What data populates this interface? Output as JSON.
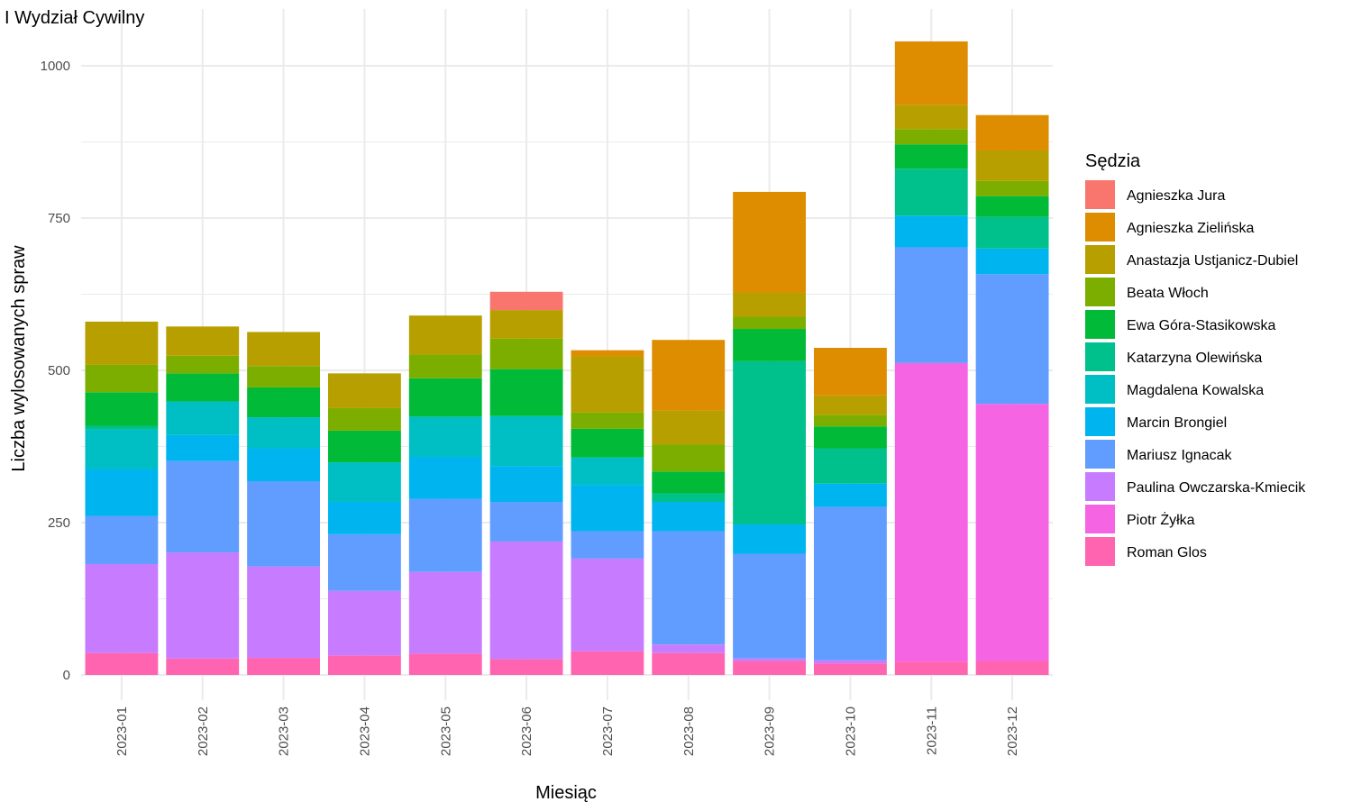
{
  "chart_data": {
    "type": "bar",
    "stacked": true,
    "title": "I Wydział Cywilny",
    "xlabel": "Miesiąc",
    "ylabel": "Liczba wylosowanych spraw",
    "legend_title": "Sędzia",
    "legend_position": "right",
    "grid": true,
    "ylim": [
      -40,
      1065
    ],
    "yticks": [
      0,
      250,
      500,
      750,
      1000
    ],
    "categories": [
      "2023-01",
      "2023-02",
      "2023-03",
      "2023-04",
      "2023-05",
      "2023-06",
      "2023-07",
      "2023-08",
      "2023-09",
      "2023-10",
      "2023-11",
      "2023-12"
    ],
    "series": [
      {
        "name": "Agnieszka Jura",
        "color": "#F8766D",
        "values": [
          0,
          0,
          0,
          0,
          0,
          30,
          0,
          0,
          0,
          0,
          0,
          0
        ]
      },
      {
        "name": "Agnieszka Zielińska",
        "color": "#DE8C00",
        "values": [
          0,
          0,
          0,
          0,
          0,
          0,
          10,
          116,
          165,
          78,
          104,
          58
        ]
      },
      {
        "name": "Anastazja Ustjanicz-Dubiel",
        "color": "#B79F00",
        "values": [
          71,
          48,
          56,
          57,
          64,
          47,
          92,
          56,
          40,
          32,
          40,
          50
        ]
      },
      {
        "name": "Beata Włoch",
        "color": "#7CAE00",
        "values": [
          45,
          29,
          35,
          37,
          39,
          50,
          27,
          44,
          20,
          19,
          25,
          25
        ]
      },
      {
        "name": "Ewa Góra-Stasikowska",
        "color": "#00BA38",
        "values": [
          55,
          46,
          49,
          52,
          63,
          77,
          47,
          36,
          53,
          36,
          40,
          34
        ]
      },
      {
        "name": "Katarzyna Olewińska",
        "color": "#00C08B",
        "values": [
          6,
          0,
          0,
          0,
          0,
          0,
          0,
          14,
          268,
          58,
          77,
          52
        ]
      },
      {
        "name": "Magdalena Kowalska",
        "color": "#00BFC4",
        "values": [
          65,
          55,
          51,
          65,
          66,
          82,
          45,
          0,
          0,
          0,
          0,
          0
        ]
      },
      {
        "name": "Marcin Brongiel",
        "color": "#00B4F0",
        "values": [
          77,
          43,
          54,
          53,
          69,
          59,
          76,
          48,
          48,
          38,
          52,
          42
        ]
      },
      {
        "name": "Mariusz Ignacak",
        "color": "#619CFF",
        "values": [
          79,
          150,
          140,
          93,
          120,
          65,
          45,
          186,
          172,
          252,
          190,
          213
        ]
      },
      {
        "name": "Paulina Owczarska-Kmiecik",
        "color": "#C77CFF",
        "values": [
          146,
          174,
          150,
          106,
          134,
          193,
          152,
          14,
          4,
          5,
          0,
          0
        ]
      },
      {
        "name": "Piotr Żyłka",
        "color": "#F564E3",
        "values": [
          0,
          0,
          0,
          0,
          0,
          0,
          0,
          0,
          0,
          0,
          490,
          422
        ]
      },
      {
        "name": "Roman Glos",
        "color": "#FF64B0",
        "values": [
          36,
          27,
          28,
          32,
          35,
          26,
          39,
          36,
          23,
          19,
          22,
          23
        ]
      }
    ]
  }
}
